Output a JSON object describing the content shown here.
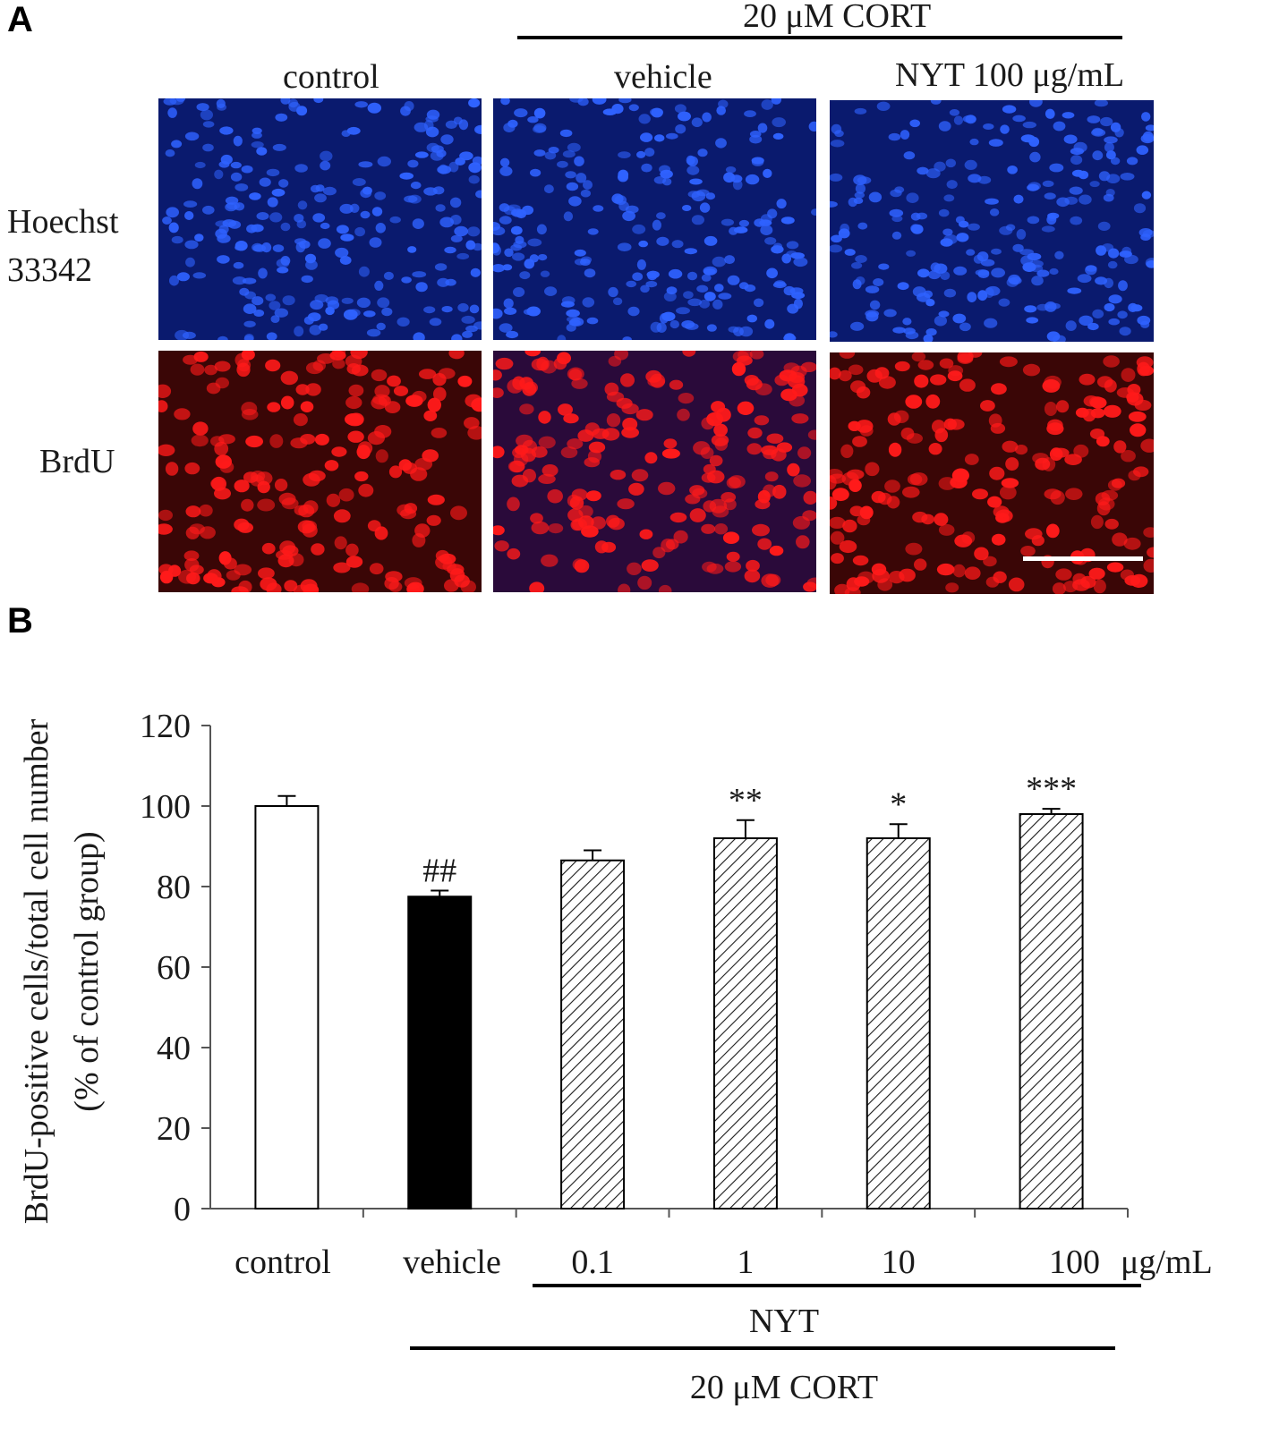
{
  "panel_a": {
    "letter": "A",
    "treatment_header": "20 μM CORT",
    "columns": [
      "control",
      "vehicle",
      "NYT 100 μg/mL"
    ],
    "rows": [
      {
        "label_line1": "Hoechst",
        "label_line2": "33342",
        "channel": "blue"
      },
      {
        "label_line1": "BrdU",
        "label_line2": "",
        "channel": "red"
      }
    ],
    "colors": {
      "blue_bg": "#0a1a6e",
      "blue_cell": "#2f62ff",
      "red_bg": "#3a0606",
      "red_cell": "#ff1a1a"
    },
    "has_scale_bar": true
  },
  "panel_b": {
    "letter": "B",
    "x_group_label_nyt": "NYT",
    "x_group_label_cort": "20 μM CORT",
    "unit_suffix": "μg/mL"
  },
  "chart_data": {
    "type": "bar",
    "categories": [
      "control",
      "vehicle",
      "0.1",
      "1",
      "10",
      "100"
    ],
    "values": [
      100,
      77.5,
      86.5,
      92,
      92,
      98
    ],
    "errors": [
      2.5,
      1.5,
      2.5,
      4.5,
      3.5,
      1.3
    ],
    "annotations": [
      "",
      "##",
      "",
      "**",
      "*",
      "***"
    ],
    "fills": [
      "white",
      "black",
      "hatched",
      "hatched",
      "hatched",
      "hatched"
    ],
    "ylabel_line1": "BrdU-positive cells/total cell number",
    "ylabel_line2": "(% of control group)",
    "ylim": [
      0,
      120
    ],
    "yticks": [
      0,
      20,
      40,
      60,
      80,
      100,
      120
    ],
    "grid": false
  }
}
